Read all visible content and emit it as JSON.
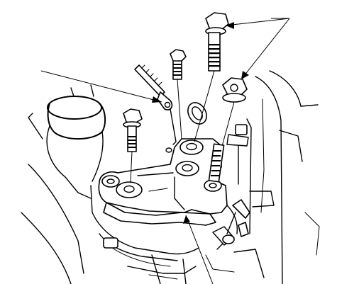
{
  "diagram": {
    "kind": "engine-bracket-exploded-view",
    "colors": {
      "line": "#000000",
      "background": "#ffffff"
    },
    "callouts": [
      {
        "id": "bolt-pair-callout",
        "target": "upper-bolts"
      },
      {
        "id": "nut-callout",
        "target": "flange-nut"
      },
      {
        "id": "ground-terminal-callout",
        "target": "ground-terminal"
      },
      {
        "id": "bracket-callout",
        "target": "mount-bracket"
      }
    ]
  }
}
